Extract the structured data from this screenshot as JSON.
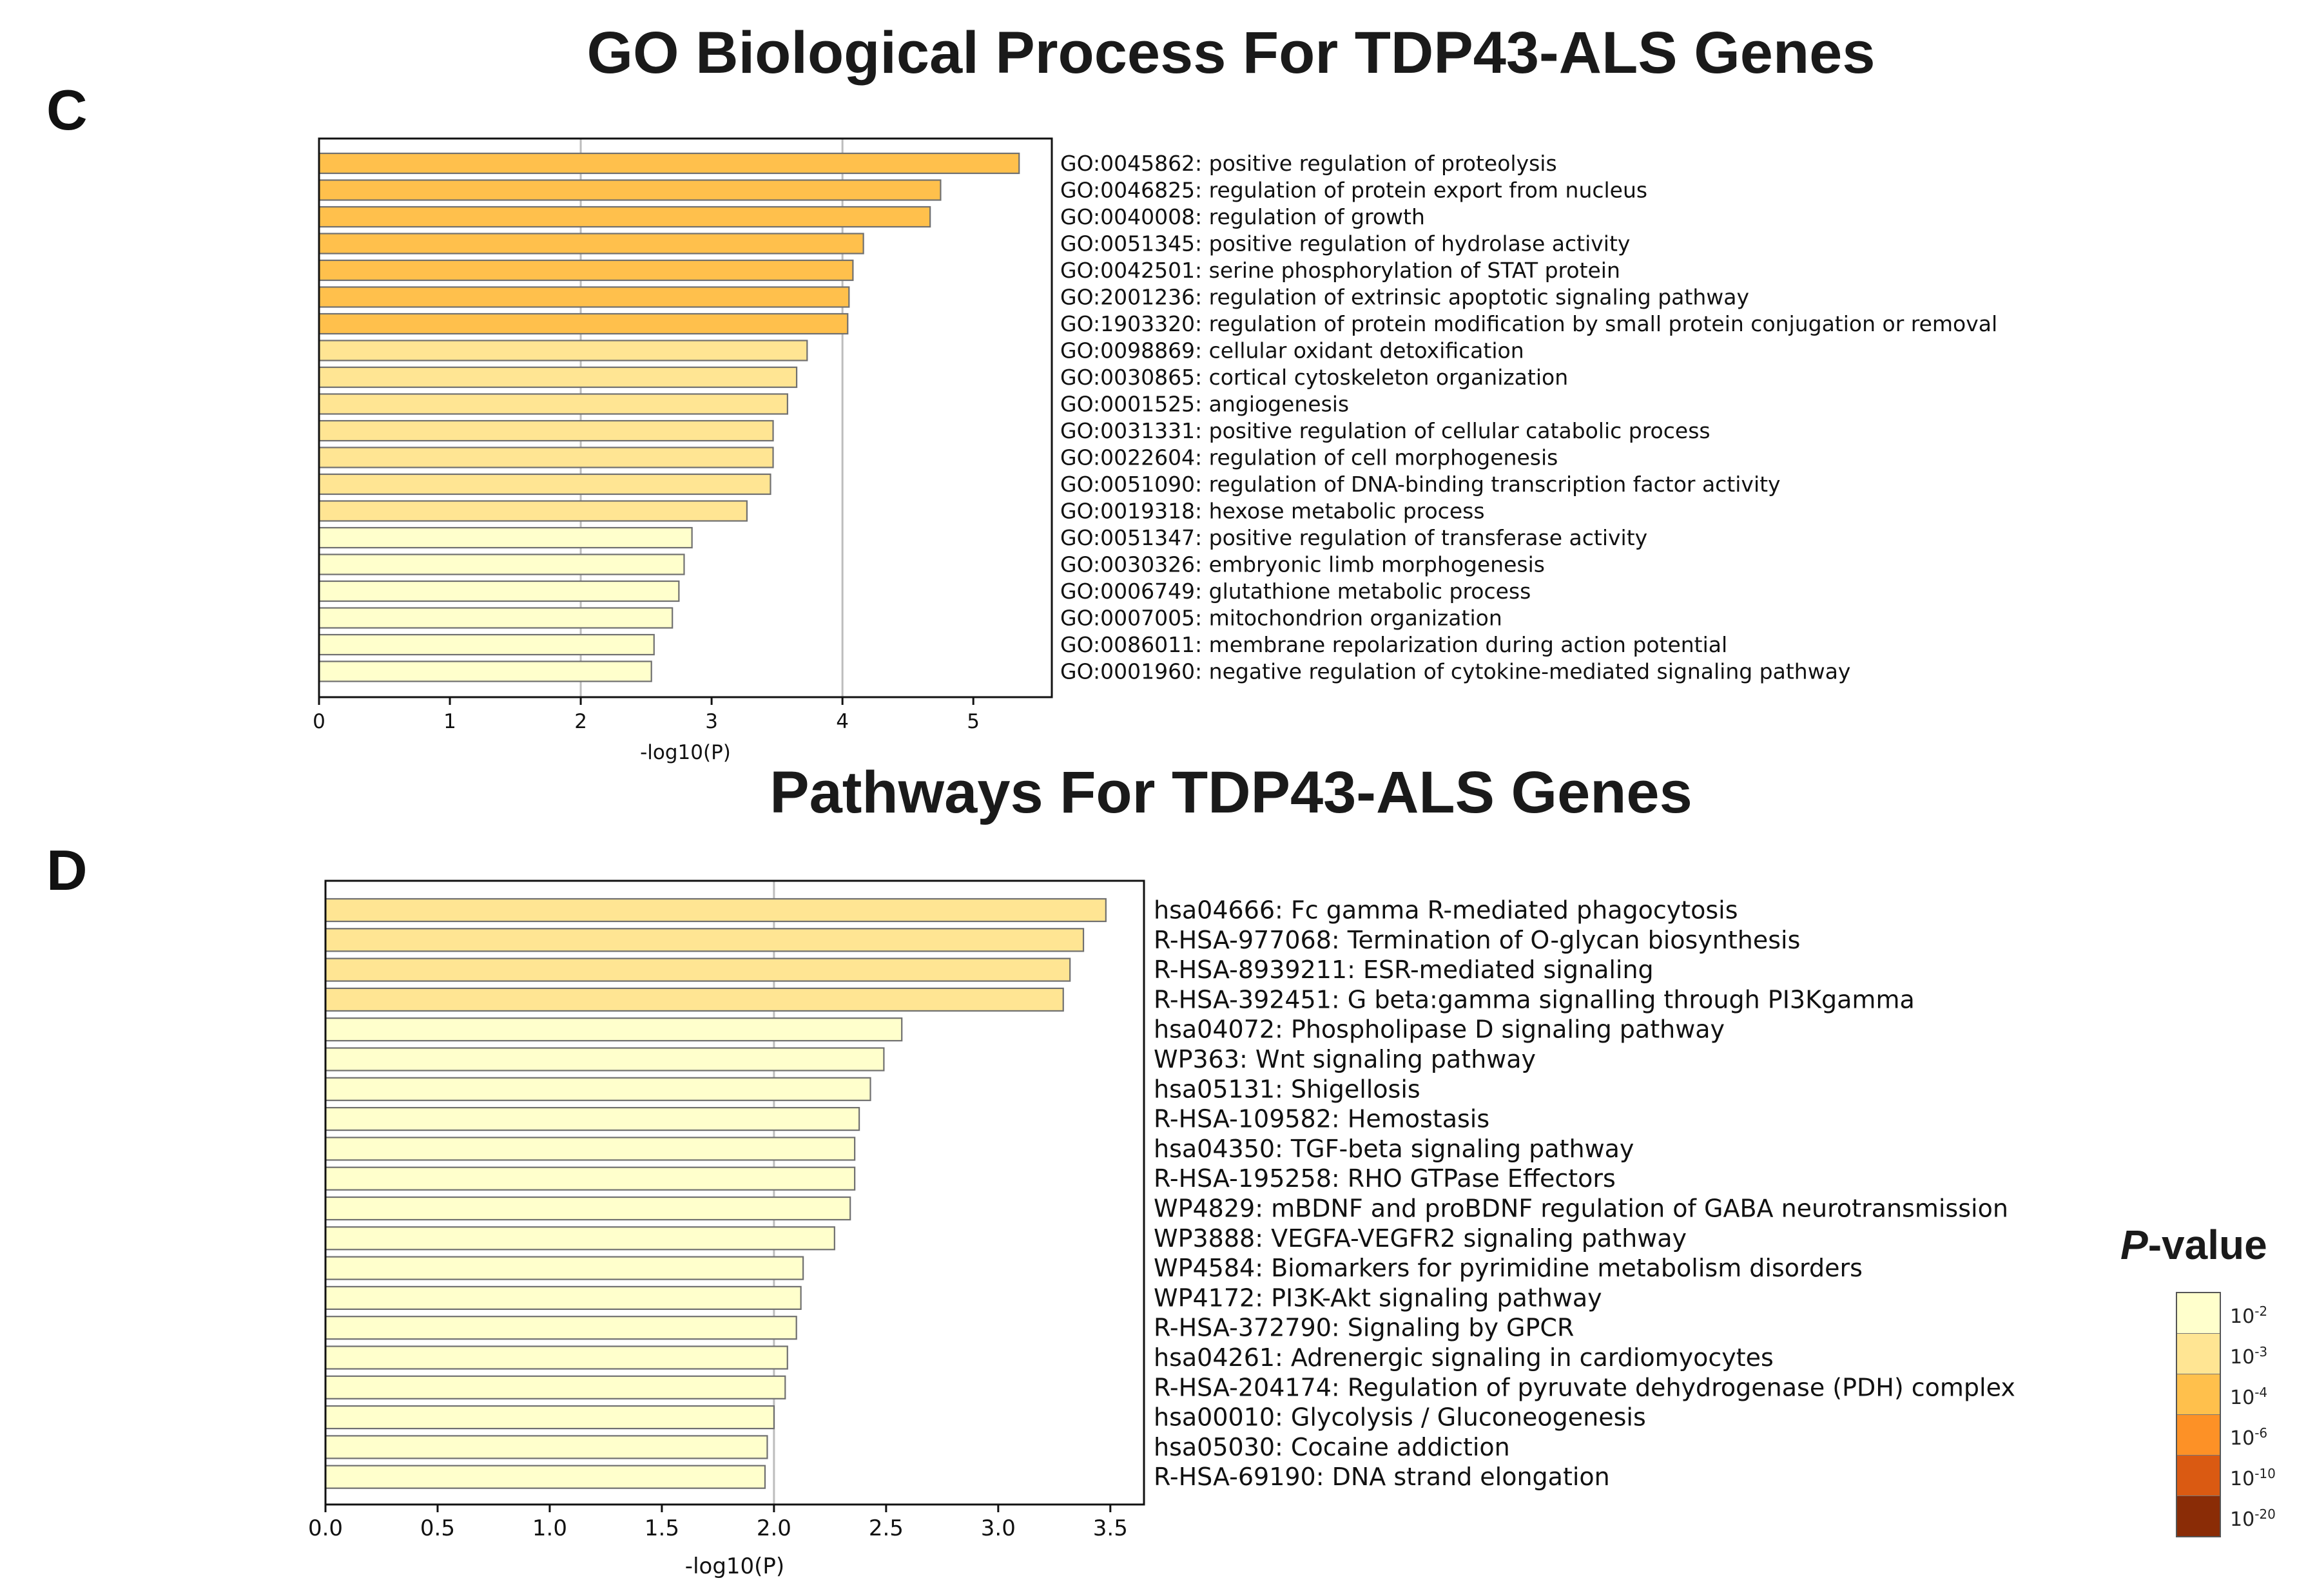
{
  "panels": {
    "c": {
      "letter": "C",
      "title": "GO Biological Process For TDP43-ALS Genes"
    },
    "d": {
      "letter": "D",
      "title": "Pathways For TDP43-ALS Genes"
    }
  },
  "legend": {
    "title_italic": "P",
    "title_rest": "-value",
    "entries": [
      {
        "base": "10",
        "exp": "-2",
        "color": "#ffffcc"
      },
      {
        "base": "10",
        "exp": "-3",
        "color": "#ffe593"
      },
      {
        "base": "10",
        "exp": "-4",
        "color": "#ffc04c"
      },
      {
        "base": "10",
        "exp": "-6",
        "color": "#fd9126"
      },
      {
        "base": "10",
        "exp": "-10",
        "color": "#da5a12"
      },
      {
        "base": "10",
        "exp": "-20",
        "color": "#8a2c06"
      }
    ]
  },
  "chart_data": [
    {
      "type": "bar",
      "orientation": "horizontal",
      "title": "GO Biological Process For TDP43-ALS Genes",
      "xlabel": "-log10(P)",
      "xlim": [
        0,
        5.6
      ],
      "xticks": [
        "0",
        "1",
        "2",
        "3",
        "4",
        "5"
      ],
      "grid_x": [
        2,
        4
      ],
      "categories": [
        "GO:0045862: positive regulation of proteolysis",
        "GO:0046825: regulation of protein export from nucleus",
        "GO:0040008: regulation of growth",
        "GO:0051345: positive regulation of hydrolase activity",
        "GO:0042501: serine phosphorylation of STAT protein",
        "GO:2001236: regulation of extrinsic apoptotic signaling pathway",
        "GO:1903320: regulation of protein modification by small protein conjugation or removal",
        "GO:0098869: cellular oxidant detoxification",
        "GO:0030865: cortical cytoskeleton organization",
        "GO:0001525: angiogenesis",
        "GO:0031331: positive regulation of cellular catabolic process",
        "GO:0022604: regulation of cell morphogenesis",
        "GO:0051090: regulation of DNA-binding transcription factor activity",
        "GO:0019318: hexose metabolic process",
        "GO:0051347: positive regulation of transferase activity",
        "GO:0030326: embryonic limb morphogenesis",
        "GO:0006749: glutathione metabolic process",
        "GO:0007005: mitochondrion organization",
        "GO:0086011: membrane repolarization during action potential",
        "GO:0001960: negative regulation of cytokine-mediated signaling pathway"
      ],
      "values": [
        5.35,
        4.75,
        4.67,
        4.16,
        4.08,
        4.05,
        4.04,
        3.73,
        3.65,
        3.58,
        3.47,
        3.47,
        3.45,
        3.27,
        2.85,
        2.79,
        2.75,
        2.7,
        2.56,
        2.54
      ],
      "colors": [
        "#ffc04c",
        "#ffc04c",
        "#ffc04c",
        "#ffc04c",
        "#ffc04c",
        "#ffc04c",
        "#ffc04c",
        "#ffe593",
        "#ffe593",
        "#ffe593",
        "#ffe593",
        "#ffe593",
        "#ffe593",
        "#ffe593",
        "#ffffcc",
        "#ffffcc",
        "#ffffcc",
        "#ffffcc",
        "#ffffcc",
        "#ffffcc"
      ]
    },
    {
      "type": "bar",
      "orientation": "horizontal",
      "title": "Pathways For TDP43-ALS Genes",
      "xlabel": "-log10(P)",
      "xlim": [
        0,
        3.65
      ],
      "xticks": [
        "0.0",
        "0.5",
        "1.0",
        "1.5",
        "2.0",
        "2.5",
        "3.0",
        "3.5"
      ],
      "grid_x": [
        2
      ],
      "categories": [
        "hsa04666: Fc gamma R-mediated phagocytosis",
        "R-HSA-977068: Termination of O-glycan biosynthesis",
        "R-HSA-8939211: ESR-mediated signaling",
        "R-HSA-392451: G beta:gamma signalling through PI3Kgamma",
        "hsa04072: Phospholipase D signaling pathway",
        "WP363: Wnt signaling pathway",
        "hsa05131: Shigellosis",
        "R-HSA-109582: Hemostasis",
        "hsa04350: TGF-beta signaling pathway",
        "R-HSA-195258: RHO GTPase Effectors",
        "WP4829: mBDNF and proBDNF regulation of GABA neurotransmission",
        "WP3888: VEGFA-VEGFR2 signaling pathway",
        "WP4584: Biomarkers for pyrimidine metabolism disorders",
        "WP4172: PI3K-Akt signaling pathway",
        "R-HSA-372790: Signaling by GPCR",
        "hsa04261: Adrenergic signaling in cardiomyocytes",
        "R-HSA-204174: Regulation of pyruvate dehydrogenase (PDH) complex",
        "hsa00010: Glycolysis / Gluconeogenesis",
        "hsa05030: Cocaine addiction",
        "R-HSA-69190: DNA strand elongation"
      ],
      "values": [
        3.48,
        3.38,
        3.32,
        3.29,
        2.57,
        2.49,
        2.43,
        2.38,
        2.36,
        2.36,
        2.34,
        2.27,
        2.13,
        2.12,
        2.1,
        2.06,
        2.05,
        2.0,
        1.97,
        1.96
      ],
      "colors": [
        "#ffe593",
        "#ffe593",
        "#ffe593",
        "#ffe593",
        "#ffffcc",
        "#ffffcc",
        "#ffffcc",
        "#ffffcc",
        "#ffffcc",
        "#ffffcc",
        "#ffffcc",
        "#ffffcc",
        "#ffffcc",
        "#ffffcc",
        "#ffffcc",
        "#ffffcc",
        "#ffffcc",
        "#ffffcc",
        "#ffffcc",
        "#ffffcc"
      ]
    }
  ]
}
